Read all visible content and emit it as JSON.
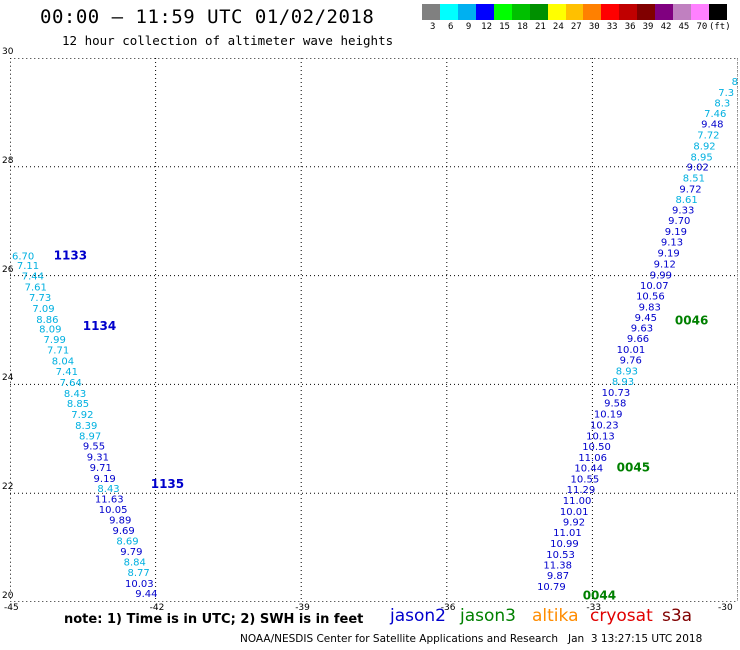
{
  "header": {
    "title": "00:00 – 11:59 UTC 01/02/2018",
    "subtitle": "12 hour collection of altimeter wave heights"
  },
  "colorbar": {
    "colors": [
      "#808080",
      "#00ffff",
      "#00b0f0",
      "#0000ff",
      "#00ff00",
      "#00c000",
      "#009000",
      "#ffff00",
      "#ffc000",
      "#ff8000",
      "#ff0000",
      "#c00000",
      "#800000",
      "#800080",
      "#c080c0",
      "#ff80ff",
      "#000000"
    ],
    "labels": [
      "3",
      "6",
      "9",
      "12",
      "15",
      "18",
      "21",
      "24",
      "27",
      "30",
      "33",
      "36",
      "39",
      "42",
      "45",
      "70",
      "(ft)"
    ]
  },
  "chart_data": {
    "type": "scatter",
    "x_ticks": [
      "-45",
      "-42",
      "-39",
      "-36",
      "-33",
      "-30"
    ],
    "y_ticks": [
      "30",
      "28",
      "26",
      "24",
      "22",
      "20"
    ],
    "xlim": [
      -45,
      -30
    ],
    "ylim": [
      20,
      30
    ],
    "time_labels": [
      {
        "text": "1133",
        "lon": -44.1,
        "lat": 26.3,
        "color": "#0000cc"
      },
      {
        "text": "1134",
        "lon": -43.5,
        "lat": 25.0,
        "color": "#0000cc"
      },
      {
        "text": "1135",
        "lon": -42.1,
        "lat": 22.1,
        "color": "#0000cc"
      },
      {
        "text": "0046",
        "lon": -31.3,
        "lat": 25.1,
        "color": "#008000"
      },
      {
        "text": "0045",
        "lon": -32.5,
        "lat": 22.4,
        "color": "#008000"
      },
      {
        "text": "0044",
        "lon": -33.2,
        "lat": 20.05,
        "color": "#008000"
      }
    ],
    "series": [
      {
        "name": "jason2",
        "points": [
          {
            "lon": -44.5,
            "lat": 26.3,
            "v": "6.70",
            "color": "#00b0e0"
          },
          {
            "lon": -44.4,
            "lat": 26.12,
            "v": "7.11",
            "color": "#00b0e0"
          },
          {
            "lon": -44.3,
            "lat": 25.93,
            "v": "7.44",
            "color": "#00b0e0"
          },
          {
            "lon": -44.24,
            "lat": 25.73,
            "v": "7.61",
            "color": "#00b0e0"
          },
          {
            "lon": -44.15,
            "lat": 25.53,
            "v": "7.73",
            "color": "#00b0e0"
          },
          {
            "lon": -44.08,
            "lat": 25.33,
            "v": "7.09",
            "color": "#00b0e0"
          },
          {
            "lon": -44.0,
            "lat": 25.13,
            "v": "8.86",
            "color": "#00b0e0"
          },
          {
            "lon": -43.94,
            "lat": 24.95,
            "v": "8.09",
            "color": "#00b0e0"
          },
          {
            "lon": -43.85,
            "lat": 24.76,
            "v": "7.99",
            "color": "#00b0e0"
          },
          {
            "lon": -43.78,
            "lat": 24.57,
            "v": "7.71",
            "color": "#00b0e0"
          },
          {
            "lon": -43.68,
            "lat": 24.37,
            "v": "8.04",
            "color": "#00b0e0"
          },
          {
            "lon": -43.6,
            "lat": 24.17,
            "v": "7.41",
            "color": "#00b0e0"
          },
          {
            "lon": -43.52,
            "lat": 23.97,
            "v": "7.64",
            "color": "#00b0e0"
          },
          {
            "lon": -43.43,
            "lat": 23.77,
            "v": "8.43",
            "color": "#00b0e0"
          },
          {
            "lon": -43.37,
            "lat": 23.58,
            "v": "8.85",
            "color": "#00b0e0"
          },
          {
            "lon": -43.28,
            "lat": 23.38,
            "v": "7.92",
            "color": "#00b0e0"
          },
          {
            "lon": -43.2,
            "lat": 23.18,
            "v": "8.39",
            "color": "#00b0e0"
          },
          {
            "lon": -43.12,
            "lat": 22.99,
            "v": "8.97",
            "color": "#00b0e0"
          },
          {
            "lon": -43.04,
            "lat": 22.8,
            "v": "9.55",
            "color": "#0000cc"
          },
          {
            "lon": -42.96,
            "lat": 22.6,
            "v": "9.31",
            "color": "#0000cc"
          },
          {
            "lon": -42.9,
            "lat": 22.41,
            "v": "9.71",
            "color": "#0000cc"
          },
          {
            "lon": -42.82,
            "lat": 22.21,
            "v": "9.19",
            "color": "#0000cc"
          },
          {
            "lon": -42.74,
            "lat": 22.02,
            "v": "8.43",
            "color": "#00b0e0"
          },
          {
            "lon": -42.66,
            "lat": 21.83,
            "v": "11.63",
            "color": "#0000cc"
          },
          {
            "lon": -42.58,
            "lat": 21.64,
            "v": "10.05",
            "color": "#0000cc"
          },
          {
            "lon": -42.5,
            "lat": 21.44,
            "v": "9.89",
            "color": "#0000cc"
          },
          {
            "lon": -42.43,
            "lat": 21.25,
            "v": "9.69",
            "color": "#0000cc"
          },
          {
            "lon": -42.35,
            "lat": 21.06,
            "v": "8.69",
            "color": "#00b0e0"
          },
          {
            "lon": -42.27,
            "lat": 20.86,
            "v": "9.79",
            "color": "#0000cc"
          },
          {
            "lon": -42.2,
            "lat": 20.67,
            "v": "8.84",
            "color": "#00b0e0"
          },
          {
            "lon": -42.12,
            "lat": 20.48,
            "v": "8.77",
            "color": "#00b0e0"
          },
          {
            "lon": -42.04,
            "lat": 20.28,
            "v": "10.03",
            "color": "#0000cc"
          },
          {
            "lon": -41.96,
            "lat": 20.09,
            "v": "9.44",
            "color": "#0000cc"
          }
        ]
      },
      {
        "name": "jason3",
        "points": [
          {
            "lon": -30.0,
            "lat": 29.5,
            "v": "8",
            "color": "#00b0e0"
          },
          {
            "lon": -30.08,
            "lat": 29.3,
            "v": "7.3",
            "color": "#00b0e0"
          },
          {
            "lon": -30.16,
            "lat": 29.11,
            "v": "8.3",
            "color": "#00b0e0"
          },
          {
            "lon": -30.24,
            "lat": 28.92,
            "v": "7.46",
            "color": "#00b0e0"
          },
          {
            "lon": -30.3,
            "lat": 28.72,
            "v": "9.48",
            "color": "#0000cc"
          },
          {
            "lon": -30.38,
            "lat": 28.52,
            "v": "7.72",
            "color": "#00b0e0"
          },
          {
            "lon": -30.46,
            "lat": 28.32,
            "v": "8.92",
            "color": "#00b0e0"
          },
          {
            "lon": -30.52,
            "lat": 28.12,
            "v": "8.95",
            "color": "#00b0e0"
          },
          {
            "lon": -30.6,
            "lat": 27.93,
            "v": "9.02",
            "color": "#0000cc"
          },
          {
            "lon": -30.68,
            "lat": 27.73,
            "v": "8.51",
            "color": "#00b0e0"
          },
          {
            "lon": -30.75,
            "lat": 27.53,
            "v": "9.72",
            "color": "#0000cc"
          },
          {
            "lon": -30.83,
            "lat": 27.33,
            "v": "8.61",
            "color": "#00b0e0"
          },
          {
            "lon": -30.9,
            "lat": 27.14,
            "v": "9.33",
            "color": "#0000cc"
          },
          {
            "lon": -30.98,
            "lat": 26.95,
            "v": "9.70",
            "color": "#0000cc"
          },
          {
            "lon": -31.05,
            "lat": 26.75,
            "v": "9.19",
            "color": "#0000cc"
          },
          {
            "lon": -31.13,
            "lat": 26.55,
            "v": "9.13",
            "color": "#0000cc"
          },
          {
            "lon": -31.2,
            "lat": 26.35,
            "v": "9.19",
            "color": "#0000cc"
          },
          {
            "lon": -31.28,
            "lat": 26.15,
            "v": "9.12",
            "color": "#0000cc"
          },
          {
            "lon": -31.36,
            "lat": 25.95,
            "v": "9.99",
            "color": "#0000cc"
          },
          {
            "lon": -31.43,
            "lat": 25.75,
            "v": "10.07",
            "color": "#0000cc"
          },
          {
            "lon": -31.51,
            "lat": 25.56,
            "v": "10.56",
            "color": "#0000cc"
          },
          {
            "lon": -31.59,
            "lat": 25.36,
            "v": "9.83",
            "color": "#0000cc"
          },
          {
            "lon": -31.67,
            "lat": 25.17,
            "v": "9.45",
            "color": "#0000cc"
          },
          {
            "lon": -31.75,
            "lat": 24.97,
            "v": "9.63",
            "color": "#0000cc"
          },
          {
            "lon": -31.83,
            "lat": 24.78,
            "v": "9.66",
            "color": "#0000cc"
          },
          {
            "lon": -31.91,
            "lat": 24.58,
            "v": "10.01",
            "color": "#0000cc"
          },
          {
            "lon": -31.98,
            "lat": 24.38,
            "v": "9.76",
            "color": "#0000cc"
          },
          {
            "lon": -32.06,
            "lat": 24.18,
            "v": "8.93",
            "color": "#00b0e0"
          },
          {
            "lon": -32.14,
            "lat": 23.99,
            "v": "8.93",
            "color": "#00b0e0"
          },
          {
            "lon": -32.22,
            "lat": 23.79,
            "v": "10.73",
            "color": "#0000cc"
          },
          {
            "lon": -32.3,
            "lat": 23.59,
            "v": "9.58",
            "color": "#0000cc"
          },
          {
            "lon": -32.38,
            "lat": 23.39,
            "v": "10.19",
            "color": "#0000cc"
          },
          {
            "lon": -32.46,
            "lat": 23.19,
            "v": "10.23",
            "color": "#0000cc"
          },
          {
            "lon": -32.54,
            "lat": 22.99,
            "v": "10.13",
            "color": "#0000cc"
          },
          {
            "lon": -32.62,
            "lat": 22.79,
            "v": "10.50",
            "color": "#0000cc"
          },
          {
            "lon": -32.7,
            "lat": 22.59,
            "v": "11.06",
            "color": "#0000cc"
          },
          {
            "lon": -32.78,
            "lat": 22.4,
            "v": "10.44",
            "color": "#0000cc"
          },
          {
            "lon": -32.86,
            "lat": 22.2,
            "v": "10.55",
            "color": "#0000cc"
          },
          {
            "lon": -32.94,
            "lat": 22.0,
            "v": "11.29",
            "color": "#0000cc"
          },
          {
            "lon": -33.02,
            "lat": 21.8,
            "v": "11.00",
            "color": "#0000cc"
          },
          {
            "lon": -33.08,
            "lat": 21.6,
            "v": "10.01",
            "color": "#0000cc"
          },
          {
            "lon": -33.15,
            "lat": 21.41,
            "v": "9.92",
            "color": "#0000cc"
          },
          {
            "lon": -33.22,
            "lat": 21.21,
            "v": "11.01",
            "color": "#0000cc"
          },
          {
            "lon": -33.28,
            "lat": 21.01,
            "v": "10.99",
            "color": "#0000cc"
          },
          {
            "lon": -33.36,
            "lat": 20.81,
            "v": "10.53",
            "color": "#0000cc"
          },
          {
            "lon": -33.42,
            "lat": 20.62,
            "v": "11.38",
            "color": "#0000cc"
          },
          {
            "lon": -33.48,
            "lat": 20.42,
            "v": "9.87",
            "color": "#0000cc"
          },
          {
            "lon": -33.55,
            "lat": 20.22,
            "v": "10.79",
            "color": "#0000cc"
          }
        ]
      }
    ]
  },
  "note": "note: 1) Time is in UTC; 2) SWH is in feet",
  "satellites": [
    {
      "name": "jason2",
      "color": "#0000cc"
    },
    {
      "name": "jason3",
      "color": "#008000"
    },
    {
      "name": "altika",
      "color": "#ff8c00"
    },
    {
      "name": "cryosat",
      "color": "#e00000"
    },
    {
      "name": "s3a",
      "color": "#800000"
    }
  ],
  "footer": "NOAA/NESDIS Center for Satellite Applications and Research   Jan  3 13:27:15 UTC 2018"
}
